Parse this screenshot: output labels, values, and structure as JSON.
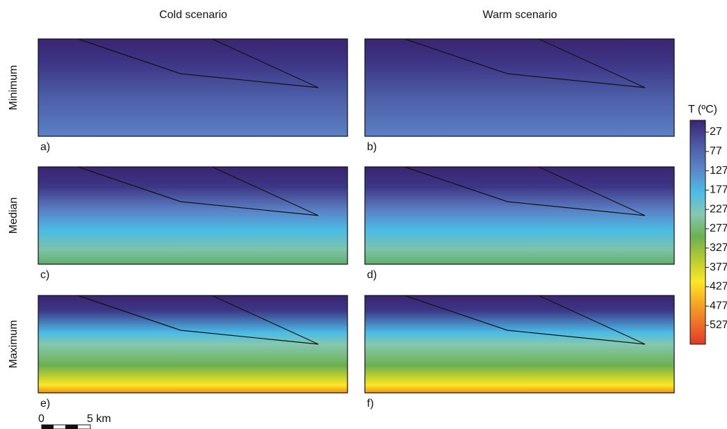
{
  "columns": [
    "Cold scenario",
    "Warm scenario"
  ],
  "rows": [
    "Minimum",
    "Median",
    "Maximum"
  ],
  "panels": [
    [
      "a)",
      "b)"
    ],
    [
      "c)",
      "d)"
    ],
    [
      "e)",
      "f)"
    ]
  ],
  "colorbar": {
    "title": "T (ºC)",
    "ticks": [
      27,
      77,
      127,
      177,
      227,
      277,
      327,
      377,
      427,
      477,
      527
    ]
  },
  "scale_bar": {
    "start": "0",
    "end": "5 km"
  }
}
